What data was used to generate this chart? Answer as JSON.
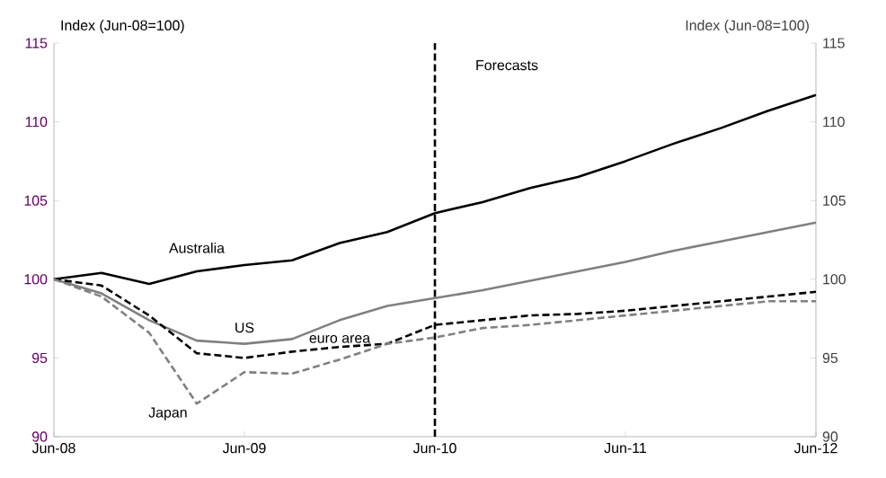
{
  "chart_data": {
    "type": "line",
    "x": [
      "2008-06",
      "2008-09",
      "2008-12",
      "2009-03",
      "2009-06",
      "2009-09",
      "2009-12",
      "2010-03",
      "2010-06",
      "2010-09",
      "2010-12",
      "2011-03",
      "2011-06",
      "2011-09",
      "2011-12",
      "2012-03",
      "2012-06"
    ],
    "series": [
      {
        "name": "Australia",
        "color": "#000000",
        "line_style": "solid",
        "values": [
          100,
          100.4,
          99.7,
          100.5,
          100.9,
          101.2,
          102.3,
          103.0,
          104.2,
          104.9,
          105.8,
          106.5,
          107.5,
          108.6,
          109.6,
          110.7,
          111.7
        ]
      },
      {
        "name": "US",
        "color": "#808080",
        "line_style": "solid",
        "values": [
          100,
          99.1,
          97.4,
          96.1,
          95.9,
          96.2,
          97.4,
          98.3,
          98.8,
          99.3,
          99.9,
          100.5,
          101.1,
          101.8,
          102.4,
          103.0,
          103.6
        ]
      },
      {
        "name": "euro area",
        "color": "#000000",
        "line_style": "dashed",
        "values": [
          100,
          99.6,
          97.7,
          95.3,
          95.0,
          95.4,
          95.7,
          95.9,
          97.1,
          97.4,
          97.7,
          97.8,
          98.0,
          98.3,
          98.6,
          98.9,
          99.2
        ]
      },
      {
        "name": "Japan",
        "color": "#808080",
        "line_style": "dashed",
        "values": [
          100,
          98.9,
          96.6,
          92.1,
          94.1,
          94.0,
          94.9,
          95.9,
          96.3,
          96.9,
          97.1,
          97.4,
          97.7,
          98.0,
          98.3,
          98.6,
          98.6
        ]
      }
    ],
    "ylabel": "Index (Jun-08=100)",
    "y2label": "Index (Jun-08=100)",
    "xlim": [
      "2008-06",
      "2012-06"
    ],
    "xticks": [
      {
        "value": "2008-06",
        "label": "Jun-08"
      },
      {
        "value": "2009-06",
        "label": "Jun-09"
      },
      {
        "value": "2010-06",
        "label": "Jun-10"
      },
      {
        "value": "2011-06",
        "label": "Jun-11"
      },
      {
        "value": "2012-06",
        "label": "Jun-12"
      }
    ],
    "ylim": [
      90,
      115
    ],
    "yticks": [
      90,
      95,
      100,
      105,
      110,
      115
    ],
    "y2lim": [
      90,
      115
    ],
    "y2ticks": [
      90,
      95,
      100,
      105,
      110,
      115
    ],
    "ref_lines": [
      {
        "axis": "x",
        "value": "2010-06",
        "label": "Forecasts",
        "color": "#000000",
        "line_style": "dashed"
      }
    ],
    "grid": false,
    "marker": "none"
  }
}
